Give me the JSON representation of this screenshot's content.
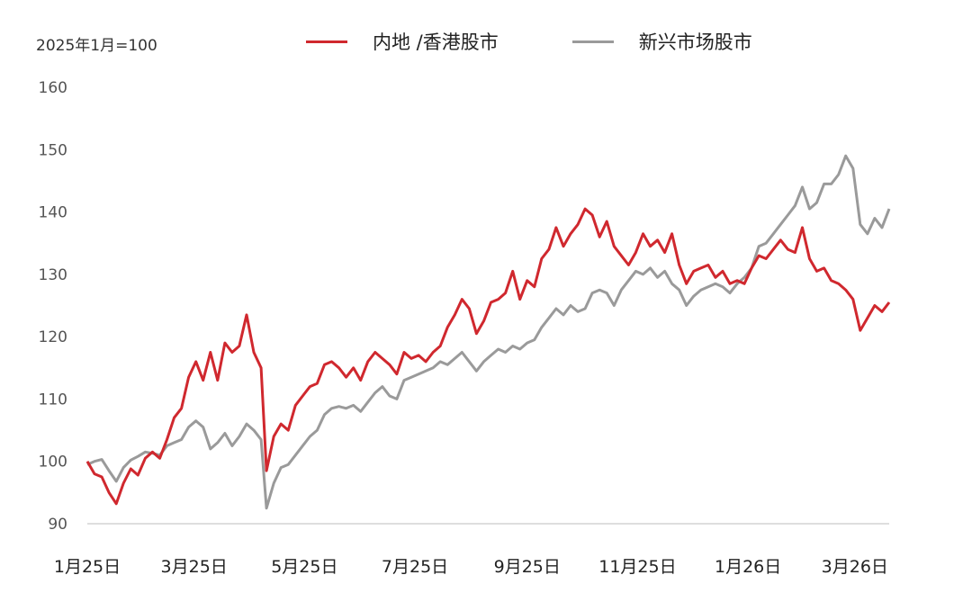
{
  "chart_data": {
    "type": "line",
    "unit_label": "2025年1月=100",
    "ylim": [
      90,
      160
    ],
    "yticks": [
      90,
      100,
      110,
      120,
      130,
      140,
      150,
      160
    ],
    "x_ticks": [
      {
        "label": "1月25日",
        "date": "2025-01-01"
      },
      {
        "label": "3月25日",
        "date": "2025-03-01"
      },
      {
        "label": "5月25日",
        "date": "2025-05-01"
      },
      {
        "label": "7月25日",
        "date": "2025-07-01"
      },
      {
        "label": "9月25日",
        "date": "2025-09-01"
      },
      {
        "label": "11月25日",
        "date": "2025-11-01"
      },
      {
        "label": "1月26日",
        "date": "2026-01-01"
      },
      {
        "label": "3月26日",
        "date": "2026-03-01"
      }
    ],
    "grid": false,
    "legend_position": "top",
    "series": [
      {
        "name": "内地 /香港股市",
        "color": "#d0282e",
        "points": [
          [
            "2025-01-01",
            100
          ],
          [
            "2025-01-05",
            98
          ],
          [
            "2025-01-09",
            97.5
          ],
          [
            "2025-01-13",
            95
          ],
          [
            "2025-01-17",
            93.2
          ],
          [
            "2025-01-21",
            96.5
          ],
          [
            "2025-01-25",
            98.8
          ],
          [
            "2025-01-29",
            97.8
          ],
          [
            "2025-02-02",
            100.5
          ],
          [
            "2025-02-06",
            101.5
          ],
          [
            "2025-02-10",
            100.5
          ],
          [
            "2025-02-14",
            103.5
          ],
          [
            "2025-02-18",
            107
          ],
          [
            "2025-02-22",
            108.5
          ],
          [
            "2025-02-26",
            113.5
          ],
          [
            "2025-03-02",
            116
          ],
          [
            "2025-03-06",
            113
          ],
          [
            "2025-03-10",
            117.5
          ],
          [
            "2025-03-14",
            113
          ],
          [
            "2025-03-18",
            119
          ],
          [
            "2025-03-22",
            117.5
          ],
          [
            "2025-03-26",
            118.5
          ],
          [
            "2025-03-30",
            123.5
          ],
          [
            "2025-04-03",
            117.5
          ],
          [
            "2025-04-07",
            115
          ],
          [
            "2025-04-10",
            98.5
          ],
          [
            "2025-04-14",
            104
          ],
          [
            "2025-04-18",
            106
          ],
          [
            "2025-04-22",
            105
          ],
          [
            "2025-04-26",
            109
          ],
          [
            "2025-04-30",
            110.5
          ],
          [
            "2025-05-04",
            112
          ],
          [
            "2025-05-08",
            112.5
          ],
          [
            "2025-05-12",
            115.5
          ],
          [
            "2025-05-16",
            116
          ],
          [
            "2025-05-20",
            115
          ],
          [
            "2025-05-24",
            113.5
          ],
          [
            "2025-05-28",
            115
          ],
          [
            "2025-06-01",
            113
          ],
          [
            "2025-06-05",
            116
          ],
          [
            "2025-06-09",
            117.5
          ],
          [
            "2025-06-13",
            116.5
          ],
          [
            "2025-06-17",
            115.5
          ],
          [
            "2025-06-21",
            114
          ],
          [
            "2025-06-25",
            117.5
          ],
          [
            "2025-06-29",
            116.5
          ],
          [
            "2025-07-03",
            117
          ],
          [
            "2025-07-07",
            116
          ],
          [
            "2025-07-11",
            117.5
          ],
          [
            "2025-07-15",
            118.5
          ],
          [
            "2025-07-19",
            121.5
          ],
          [
            "2025-07-23",
            123.5
          ],
          [
            "2025-07-27",
            126
          ],
          [
            "2025-07-31",
            124.5
          ],
          [
            "2025-08-04",
            120.5
          ],
          [
            "2025-08-08",
            122.5
          ],
          [
            "2025-08-12",
            125.5
          ],
          [
            "2025-08-16",
            126
          ],
          [
            "2025-08-20",
            127
          ],
          [
            "2025-08-24",
            130.5
          ],
          [
            "2025-08-28",
            126
          ],
          [
            "2025-09-01",
            129
          ],
          [
            "2025-09-05",
            128
          ],
          [
            "2025-09-09",
            132.5
          ],
          [
            "2025-09-13",
            134
          ],
          [
            "2025-09-17",
            137.5
          ],
          [
            "2025-09-21",
            134.5
          ],
          [
            "2025-09-25",
            136.5
          ],
          [
            "2025-09-29",
            138
          ],
          [
            "2025-10-03",
            140.5
          ],
          [
            "2025-10-07",
            139.5
          ],
          [
            "2025-10-11",
            136
          ],
          [
            "2025-10-15",
            138.5
          ],
          [
            "2025-10-19",
            134.5
          ],
          [
            "2025-10-23",
            133
          ],
          [
            "2025-10-27",
            131.5
          ],
          [
            "2025-10-31",
            133.5
          ],
          [
            "2025-11-04",
            136.5
          ],
          [
            "2025-11-08",
            134.5
          ],
          [
            "2025-11-12",
            135.5
          ],
          [
            "2025-11-16",
            133.5
          ],
          [
            "2025-11-20",
            136.5
          ],
          [
            "2025-11-24",
            131.5
          ],
          [
            "2025-11-28",
            128.5
          ],
          [
            "2025-12-02",
            130.5
          ],
          [
            "2025-12-06",
            131
          ],
          [
            "2025-12-10",
            131.5
          ],
          [
            "2025-12-14",
            129.5
          ],
          [
            "2025-12-18",
            130.5
          ],
          [
            "2025-12-22",
            128.5
          ],
          [
            "2025-12-26",
            129
          ],
          [
            "2025-12-30",
            128.5
          ],
          [
            "2026-01-03",
            131
          ],
          [
            "2026-01-07",
            133
          ],
          [
            "2026-01-11",
            132.5
          ],
          [
            "2026-01-15",
            134
          ],
          [
            "2026-01-19",
            135.5
          ],
          [
            "2026-01-23",
            134
          ],
          [
            "2026-01-27",
            133.5
          ],
          [
            "2026-01-31",
            137.5
          ],
          [
            "2026-02-04",
            132.5
          ],
          [
            "2026-02-08",
            130.5
          ],
          [
            "2026-02-12",
            131
          ],
          [
            "2026-02-16",
            129
          ],
          [
            "2026-02-20",
            128.5
          ],
          [
            "2026-02-24",
            127.5
          ],
          [
            "2026-02-28",
            126
          ],
          [
            "2026-03-04",
            121
          ],
          [
            "2026-03-08",
            123
          ],
          [
            "2026-03-12",
            125
          ],
          [
            "2026-03-16",
            124
          ],
          [
            "2026-03-20",
            125.5
          ]
        ]
      },
      {
        "name": "新兴市场股市",
        "color": "#9a9a9a",
        "points": [
          [
            "2025-01-01",
            99.5
          ],
          [
            "2025-01-05",
            100
          ],
          [
            "2025-01-09",
            100.3
          ],
          [
            "2025-01-13",
            98.5
          ],
          [
            "2025-01-17",
            96.8
          ],
          [
            "2025-01-21",
            99
          ],
          [
            "2025-01-25",
            100.2
          ],
          [
            "2025-01-29",
            100.8
          ],
          [
            "2025-02-02",
            101.5
          ],
          [
            "2025-02-06",
            101.3
          ],
          [
            "2025-02-10",
            101
          ],
          [
            "2025-02-14",
            102.5
          ],
          [
            "2025-02-18",
            103
          ],
          [
            "2025-02-22",
            103.5
          ],
          [
            "2025-02-26",
            105.5
          ],
          [
            "2025-03-02",
            106.5
          ],
          [
            "2025-03-06",
            105.5
          ],
          [
            "2025-03-10",
            102
          ],
          [
            "2025-03-14",
            103
          ],
          [
            "2025-03-18",
            104.5
          ],
          [
            "2025-03-22",
            102.5
          ],
          [
            "2025-03-26",
            104
          ],
          [
            "2025-03-30",
            106
          ],
          [
            "2025-04-03",
            105
          ],
          [
            "2025-04-07",
            103.5
          ],
          [
            "2025-04-10",
            92.5
          ],
          [
            "2025-04-14",
            96.5
          ],
          [
            "2025-04-18",
            99
          ],
          [
            "2025-04-22",
            99.5
          ],
          [
            "2025-04-26",
            101
          ],
          [
            "2025-04-30",
            102.5
          ],
          [
            "2025-05-04",
            104
          ],
          [
            "2025-05-08",
            105
          ],
          [
            "2025-05-12",
            107.5
          ],
          [
            "2025-05-16",
            108.5
          ],
          [
            "2025-05-20",
            108.8
          ],
          [
            "2025-05-24",
            108.5
          ],
          [
            "2025-05-28",
            109
          ],
          [
            "2025-06-01",
            108
          ],
          [
            "2025-06-05",
            109.5
          ],
          [
            "2025-06-09",
            111
          ],
          [
            "2025-06-13",
            112
          ],
          [
            "2025-06-17",
            110.5
          ],
          [
            "2025-06-21",
            110
          ],
          [
            "2025-06-25",
            113
          ],
          [
            "2025-06-29",
            113.5
          ],
          [
            "2025-07-03",
            114
          ],
          [
            "2025-07-07",
            114.5
          ],
          [
            "2025-07-11",
            115
          ],
          [
            "2025-07-15",
            116
          ],
          [
            "2025-07-19",
            115.5
          ],
          [
            "2025-07-23",
            116.5
          ],
          [
            "2025-07-27",
            117.5
          ],
          [
            "2025-07-31",
            116
          ],
          [
            "2025-08-04",
            114.5
          ],
          [
            "2025-08-08",
            116
          ],
          [
            "2025-08-12",
            117
          ],
          [
            "2025-08-16",
            118
          ],
          [
            "2025-08-20",
            117.5
          ],
          [
            "2025-08-24",
            118.5
          ],
          [
            "2025-08-28",
            118
          ],
          [
            "2025-09-01",
            119
          ],
          [
            "2025-09-05",
            119.5
          ],
          [
            "2025-09-09",
            121.5
          ],
          [
            "2025-09-13",
            123
          ],
          [
            "2025-09-17",
            124.5
          ],
          [
            "2025-09-21",
            123.5
          ],
          [
            "2025-09-25",
            125
          ],
          [
            "2025-09-29",
            124
          ],
          [
            "2025-10-03",
            124.5
          ],
          [
            "2025-10-07",
            127
          ],
          [
            "2025-10-11",
            127.5
          ],
          [
            "2025-10-15",
            127
          ],
          [
            "2025-10-19",
            125
          ],
          [
            "2025-10-23",
            127.5
          ],
          [
            "2025-10-27",
            129
          ],
          [
            "2025-10-31",
            130.5
          ],
          [
            "2025-11-04",
            130
          ],
          [
            "2025-11-08",
            131
          ],
          [
            "2025-11-12",
            129.5
          ],
          [
            "2025-11-16",
            130.5
          ],
          [
            "2025-11-20",
            128.5
          ],
          [
            "2025-11-24",
            127.5
          ],
          [
            "2025-11-28",
            125
          ],
          [
            "2025-12-02",
            126.5
          ],
          [
            "2025-12-06",
            127.5
          ],
          [
            "2025-12-10",
            128
          ],
          [
            "2025-12-14",
            128.5
          ],
          [
            "2025-12-18",
            128
          ],
          [
            "2025-12-22",
            127
          ],
          [
            "2025-12-26",
            128.5
          ],
          [
            "2025-12-30",
            129.5
          ],
          [
            "2026-01-03",
            131
          ],
          [
            "2026-01-07",
            134.5
          ],
          [
            "2026-01-11",
            135
          ],
          [
            "2026-01-15",
            136.5
          ],
          [
            "2026-01-19",
            138
          ],
          [
            "2026-01-23",
            139.5
          ],
          [
            "2026-01-27",
            141
          ],
          [
            "2026-01-31",
            144
          ],
          [
            "2026-02-04",
            140.5
          ],
          [
            "2026-02-08",
            141.5
          ],
          [
            "2026-02-12",
            144.5
          ],
          [
            "2026-02-16",
            144.5
          ],
          [
            "2026-02-20",
            146
          ],
          [
            "2026-02-24",
            149
          ],
          [
            "2026-02-28",
            147
          ],
          [
            "2026-03-04",
            138
          ],
          [
            "2026-03-08",
            136.5
          ],
          [
            "2026-03-12",
            139
          ],
          [
            "2026-03-16",
            137.5
          ],
          [
            "2026-03-20",
            140.5
          ]
        ]
      }
    ]
  }
}
